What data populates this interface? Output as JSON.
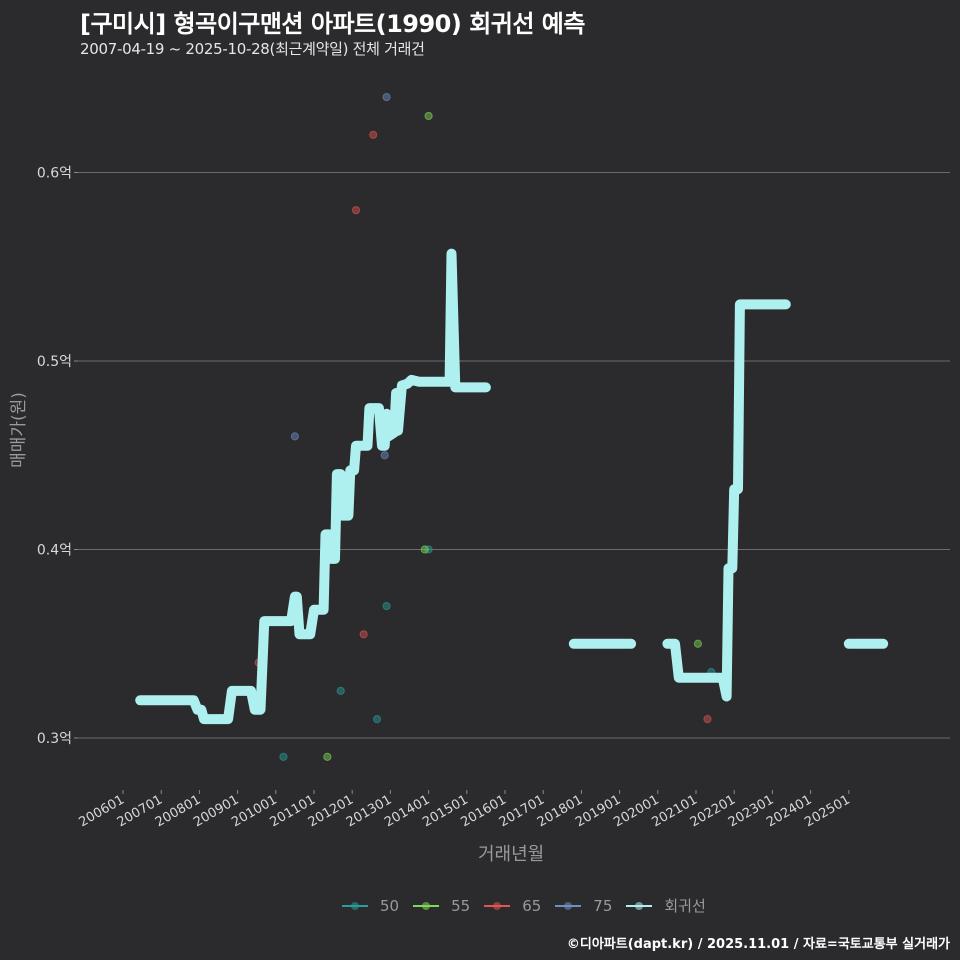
{
  "header": {
    "title": "[구미시] 형곡이구맨션 아파트(1990) 회귀선 예측",
    "subtitle": "2007-04-19 ~ 2025-10-28(최근계약일) 전체 거래건"
  },
  "axes": {
    "xlabel": "거래년월",
    "ylabel": "매매가(원)"
  },
  "legend": {
    "items": [
      {
        "label": "50",
        "color": "#2a9d9b"
      },
      {
        "label": "55",
        "color": "#7ed957"
      },
      {
        "label": "65",
        "color": "#e05555"
      },
      {
        "label": "75",
        "color": "#6f8fc7"
      },
      {
        "label": "회귀선",
        "color": "#aef0f0"
      }
    ]
  },
  "caption": "©디아파트(dapt.kr) / 2025.11.01 / 자료=국토교통부 실거래가",
  "chart_data": {
    "type": "line",
    "title": "[구미시] 형곡이구맨션 아파트(1990) 회귀선 예측",
    "subtitle": "2007-04-19 ~ 2025-10-28(최근계약일) 전체 거래건",
    "xlabel": "거래년월",
    "ylabel": "매매가(원)",
    "x_ticks": [
      "200601",
      "200701",
      "200801",
      "200901",
      "201001",
      "201101",
      "201201",
      "201301",
      "201401",
      "201501",
      "201601",
      "201701",
      "201801",
      "201901",
      "202001",
      "202101",
      "202201",
      "202301",
      "202401",
      "202501"
    ],
    "y_ticks": [
      "0.3억",
      "0.4억",
      "0.5억",
      "0.6억"
    ],
    "y_tick_values": [
      0.3,
      0.4,
      0.5,
      0.6
    ],
    "ylim": [
      0.27,
      0.66
    ],
    "grid": "horizontal major lines only",
    "legend_position": "bottom",
    "series": [
      {
        "name": "회귀선",
        "type": "step-line",
        "color": "#aef0f0",
        "segments": [
          [
            [
              2006.45,
              0.32
            ],
            [
              2007.1,
              0.32
            ],
            [
              2007.6,
              0.32
            ],
            [
              2007.85,
              0.32
            ],
            [
              2007.95,
              0.315
            ],
            [
              2008.05,
              0.315
            ],
            [
              2008.12,
              0.31
            ],
            [
              2008.4,
              0.31
            ],
            [
              2008.75,
              0.31
            ],
            [
              2008.85,
              0.325
            ],
            [
              2009.2,
              0.325
            ],
            [
              2009.35,
              0.325
            ],
            [
              2009.45,
              0.315
            ],
            [
              2009.6,
              0.315
            ],
            [
              2009.7,
              0.362
            ],
            [
              2010.4,
              0.362
            ],
            [
              2010.5,
              0.375
            ],
            [
              2010.55,
              0.375
            ],
            [
              2010.62,
              0.355
            ],
            [
              2010.9,
              0.355
            ],
            [
              2011.0,
              0.368
            ],
            [
              2011.25,
              0.368
            ],
            [
              2011.3,
              0.408
            ],
            [
              2011.4,
              0.408
            ],
            [
              2011.45,
              0.395
            ],
            [
              2011.55,
              0.395
            ],
            [
              2011.6,
              0.44
            ],
            [
              2011.7,
              0.44
            ],
            [
              2011.75,
              0.418
            ],
            [
              2011.9,
              0.418
            ],
            [
              2011.95,
              0.442
            ],
            [
              2012.05,
              0.442
            ],
            [
              2012.1,
              0.455
            ],
            [
              2012.4,
              0.455
            ],
            [
              2012.45,
              0.475
            ],
            [
              2012.7,
              0.475
            ],
            [
              2012.78,
              0.455
            ],
            [
              2012.85,
              0.455
            ],
            [
              2012.9,
              0.472
            ],
            [
              2012.95,
              0.46
            ],
            [
              2013.1,
              0.462
            ],
            [
              2013.15,
              0.483
            ],
            [
              2013.2,
              0.463
            ],
            [
              2013.3,
              0.487
            ],
            [
              2013.45,
              0.488
            ],
            [
              2013.55,
              0.49
            ],
            [
              2013.75,
              0.489
            ],
            [
              2014.35,
              0.489
            ],
            [
              2014.55,
              0.489
            ],
            [
              2014.6,
              0.557
            ],
            [
              2014.7,
              0.486
            ],
            [
              2015.5,
              0.486
            ]
          ],
          [
            [
              2017.8,
              0.35
            ],
            [
              2019.3,
              0.35
            ]
          ],
          [
            [
              2020.25,
              0.35
            ],
            [
              2020.45,
              0.35
            ],
            [
              2020.55,
              0.332
            ],
            [
              2021.0,
              0.332
            ],
            [
              2021.5,
              0.332
            ],
            [
              2021.7,
              0.332
            ],
            [
              2021.8,
              0.322
            ],
            [
              2021.85,
              0.39
            ],
            [
              2021.95,
              0.39
            ],
            [
              2022.0,
              0.432
            ],
            [
              2022.1,
              0.432
            ],
            [
              2022.15,
              0.53
            ],
            [
              2023.35,
              0.53
            ]
          ],
          [
            [
              2025.0,
              0.35
            ],
            [
              2025.9,
              0.35
            ]
          ]
        ]
      },
      {
        "name": "50",
        "type": "scatter",
        "color": "#2a9d9b",
        "points": [
          [
            2010.2,
            0.29
          ],
          [
            2011.7,
            0.325
          ],
          [
            2012.65,
            0.31
          ],
          [
            2012.9,
            0.37
          ],
          [
            2014.0,
            0.4
          ],
          [
            2021.4,
            0.335
          ]
        ]
      },
      {
        "name": "55",
        "type": "scatter",
        "color": "#7ed957",
        "points": [
          [
            2011.35,
            0.29
          ],
          [
            2013.9,
            0.4
          ],
          [
            2014.0,
            0.63
          ],
          [
            2021.05,
            0.35
          ]
        ]
      },
      {
        "name": "65",
        "type": "scatter",
        "color": "#e05555",
        "points": [
          [
            2009.55,
            0.34
          ],
          [
            2012.1,
            0.58
          ],
          [
            2012.3,
            0.355
          ],
          [
            2012.55,
            0.62
          ],
          [
            2021.3,
            0.31
          ]
        ]
      },
      {
        "name": "75",
        "type": "scatter",
        "color": "#6f8fc7",
        "points": [
          [
            2010.5,
            0.46
          ],
          [
            2012.9,
            0.64
          ],
          [
            2012.85,
            0.45
          ]
        ]
      }
    ]
  }
}
